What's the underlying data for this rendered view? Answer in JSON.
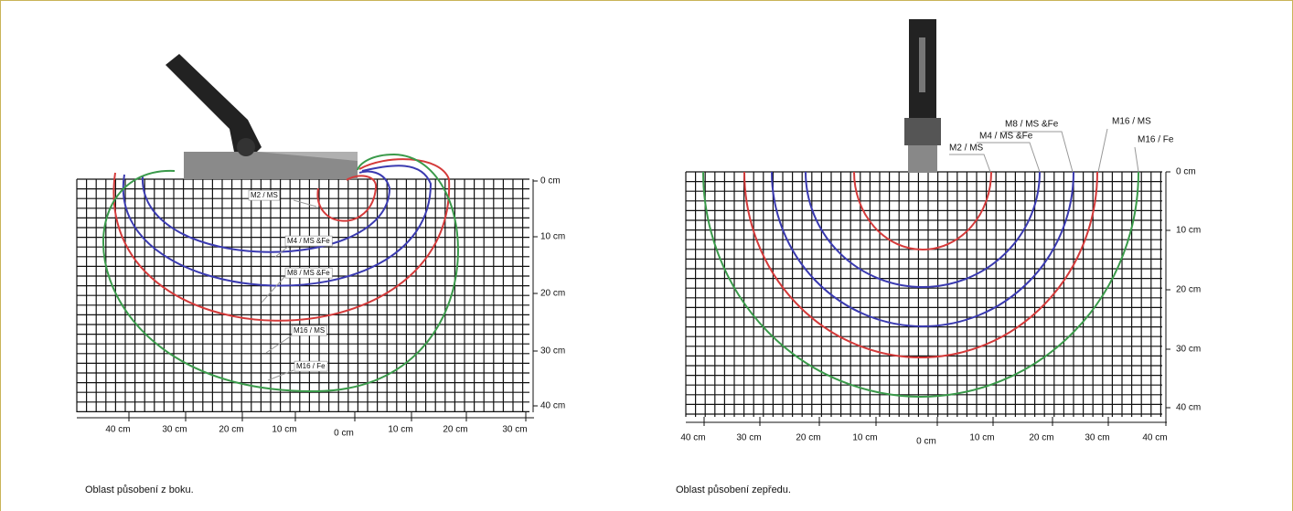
{
  "panels": [
    {
      "curve_labels": [
        "M2 / MS",
        "M4 / MS &Fe",
        "M8 / MS &Fe",
        "M16 / MS",
        "M16 / Fe"
      ],
      "depth_labels": [
        "0 cm",
        "10 cm",
        "20 cm",
        "30 cm",
        "40 cm"
      ],
      "width_labels": [
        "40 cm",
        "30 cm",
        "20 cm",
        "10 cm",
        "0 cm",
        "10 cm",
        "20 cm",
        "30 cm"
      ],
      "caption": "Oblast působení z boku."
    },
    {
      "curve_labels": [
        "M2 / MS",
        "M4 / MS &Fe",
        "M8 / MS &Fe",
        "M16 / MS",
        "M16 / Fe"
      ],
      "depth_labels": [
        "0 cm",
        "10 cm",
        "20 cm",
        "30 cm",
        "40 cm"
      ],
      "width_labels": [
        "40 cm",
        "30 cm",
        "20 cm",
        "10 cm",
        "0 cm",
        "10 cm",
        "20 cm",
        "30 cm",
        "40 cm"
      ],
      "caption": "Oblast působení zepředu."
    }
  ]
}
